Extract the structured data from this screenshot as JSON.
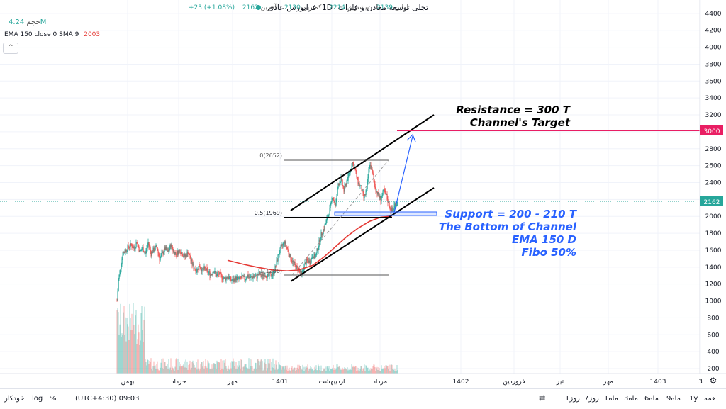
{
  "header": {
    "symbol_name": "تجلی توسعه معادن و فلزات",
    "interval": "1D",
    "exchange": "فرابورس عادی",
    "open_label": "اولین",
    "open_value": "2139",
    "high_label": "بیشترین",
    "high_value": "2214",
    "low_label": "کمترین",
    "low_value": "2130",
    "close_label": "آخرین",
    "close_value": "2162",
    "change": "+23 (+1.08%)",
    "volume_label": "حجم",
    "volume_value": "4.24M",
    "indicator": "EMA 150 close 0 SMA 9",
    "indicator_value": "2003",
    "collapse_glyph": "^"
  },
  "bottom_bar": {
    "ranges": [
      "همه",
      "1y",
      "9ماه",
      "6ماه",
      "3ماه",
      "1ماه",
      "7روز",
      "1روز"
    ],
    "timezone": "(UTC+4:30) 09:03",
    "percent": "%",
    "log": "log",
    "auto": "خودکار"
  },
  "colors": {
    "up": "#26a69a",
    "down": "#ef5350",
    "ema": "#e53935",
    "resistance": "#e91e63",
    "annotation": "#2962ff",
    "price_tag": "#26a69a"
  },
  "chart_data": {
    "type": "candlestick",
    "y_axis": {
      "ticks": [
        200,
        400,
        600,
        800,
        1000,
        1200,
        1400,
        1600,
        1800,
        2000,
        2200,
        2400,
        2600,
        2800,
        3000,
        3200,
        3400,
        3600,
        3800,
        4000,
        4200,
        4400
      ],
      "range": [
        100,
        4500
      ]
    },
    "x_axis": {
      "ticks": [
        "بهمن",
        "خرداد",
        "مهر",
        "1401",
        "اردیبهشت",
        "مرداد",
        "1402",
        "فروردین",
        "تیر",
        "مهر",
        "1403",
        "3"
      ]
    },
    "last_price": 2162,
    "resistance_price": 3000,
    "fib_labels": [
      {
        "label": "0(2652)",
        "price": 2652
      },
      {
        "label": "0.5(1969)",
        "price": 1969
      },
      {
        "label": "1(1286)",
        "price": 1286
      }
    ],
    "annotations": {
      "resistance": [
        "Resistance = 300 T",
        "Channel's Target"
      ],
      "support": [
        "Support = 200 - 210 T",
        "The Bottom of Channel",
        "EMA 150 D",
        "Fibo 50%"
      ]
    },
    "price_path": [
      [
        0,
        1000
      ],
      [
        2,
        1250
      ],
      [
        5,
        1400
      ],
      [
        8,
        1560
      ],
      [
        12,
        1600
      ],
      [
        16,
        1640
      ],
      [
        20,
        1660
      ],
      [
        24,
        1620
      ],
      [
        28,
        1700
      ],
      [
        32,
        1580
      ],
      [
        36,
        1620
      ],
      [
        40,
        1560
      ],
      [
        44,
        1690
      ],
      [
        48,
        1560
      ],
      [
        52,
        1610
      ],
      [
        56,
        1640
      ],
      [
        60,
        1500
      ],
      [
        64,
        1560
      ],
      [
        68,
        1620
      ],
      [
        72,
        1580
      ],
      [
        76,
        1660
      ],
      [
        80,
        1580
      ],
      [
        84,
        1560
      ],
      [
        88,
        1600
      ],
      [
        92,
        1560
      ],
      [
        96,
        1520
      ],
      [
        100,
        1580
      ],
      [
        104,
        1480
      ],
      [
        108,
        1400
      ],
      [
        112,
        1360
      ],
      [
        116,
        1420
      ],
      [
        120,
        1360
      ],
      [
        124,
        1380
      ],
      [
        128,
        1340
      ],
      [
        132,
        1310
      ],
      [
        136,
        1360
      ],
      [
        140,
        1300
      ],
      [
        144,
        1320
      ],
      [
        148,
        1280
      ],
      [
        152,
        1260
      ],
      [
        156,
        1290
      ],
      [
        160,
        1250
      ],
      [
        164,
        1240
      ],
      [
        168,
        1270
      ],
      [
        172,
        1250
      ],
      [
        176,
        1280
      ],
      [
        180,
        1260
      ],
      [
        184,
        1300
      ],
      [
        188,
        1270
      ],
      [
        192,
        1290
      ],
      [
        196,
        1280
      ],
      [
        200,
        1320
      ],
      [
        204,
        1290
      ],
      [
        208,
        1320
      ],
      [
        212,
        1290
      ],
      [
        216,
        1300
      ],
      [
        220,
        1320
      ],
      [
        224,
        1420
      ],
      [
        228,
        1560
      ],
      [
        232,
        1640
      ],
      [
        236,
        1700
      ],
      [
        240,
        1620
      ],
      [
        244,
        1520
      ],
      [
        248,
        1460
      ],
      [
        252,
        1400
      ],
      [
        256,
        1380
      ],
      [
        260,
        1300
      ],
      [
        264,
        1420
      ],
      [
        268,
        1480
      ],
      [
        272,
        1460
      ],
      [
        276,
        1540
      ],
      [
        280,
        1520
      ],
      [
        284,
        1660
      ],
      [
        288,
        1780
      ],
      [
        292,
        1860
      ],
      [
        296,
        1960
      ],
      [
        300,
        2080
      ],
      [
        304,
        2240
      ],
      [
        308,
        2120
      ],
      [
        312,
        2380
      ],
      [
        316,
        2440
      ],
      [
        320,
        2300
      ],
      [
        324,
        2420
      ],
      [
        328,
        2520
      ],
      [
        332,
        2640
      ],
      [
        336,
        2540
      ],
      [
        340,
        2400
      ],
      [
        344,
        2340
      ],
      [
        348,
        2220
      ],
      [
        352,
        2300
      ],
      [
        356,
        2620
      ],
      [
        360,
        2520
      ],
      [
        364,
        2340
      ],
      [
        368,
        2260
      ],
      [
        372,
        2200
      ],
      [
        376,
        2300
      ],
      [
        380,
        2240
      ],
      [
        384,
        2120
      ],
      [
        388,
        2060
      ],
      [
        392,
        2140
      ],
      [
        396,
        2162
      ]
    ],
    "ema_path": [
      [
        156,
        1480
      ],
      [
        180,
        1430
      ],
      [
        200,
        1395
      ],
      [
        220,
        1365
      ],
      [
        240,
        1355
      ],
      [
        256,
        1365
      ],
      [
        276,
        1420
      ],
      [
        292,
        1520
      ],
      [
        308,
        1640
      ],
      [
        324,
        1760
      ],
      [
        340,
        1860
      ],
      [
        356,
        1940
      ],
      [
        372,
        1990
      ],
      [
        388,
        2003
      ]
    ]
  }
}
